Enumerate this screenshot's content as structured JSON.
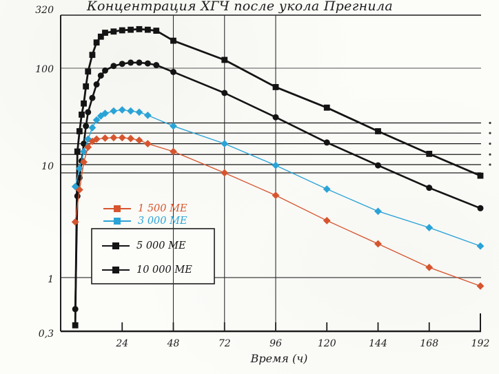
{
  "chart_data": {
    "type": "line",
    "title": "Концентрация ХГЧ после укола Прегнила",
    "xlabel": "Время (ч)",
    "y_scale": "log",
    "ylim": [
      0.3,
      320
    ],
    "xlim": [
      0,
      192
    ],
    "grid": "partial",
    "ytick_labels": [
      "320",
      "100",
      "10",
      "1",
      "0,3"
    ],
    "ytick_values": [
      320,
      100,
      10,
      1,
      0.3
    ],
    "xtick_labels": [
      "24",
      "48",
      "72",
      "96",
      "120",
      "144",
      "168",
      "192"
    ],
    "xtick_values": [
      24,
      48,
      72,
      96,
      120,
      144,
      168,
      192
    ],
    "vertical_gridline_values": [
      48,
      72,
      96
    ],
    "reference_line_values": [
      30,
      24,
      19,
      15,
      12
    ],
    "series": [
      {
        "name": "10 000 МЕ",
        "color": "#141414",
        "marker": "square",
        "points": [
          [
            2,
            0.35
          ],
          [
            3,
            16
          ],
          [
            4,
            25
          ],
          [
            5,
            36
          ],
          [
            6,
            46
          ],
          [
            7,
            67
          ],
          [
            8,
            93
          ],
          [
            10,
            134
          ],
          [
            12,
            176
          ],
          [
            14,
            200
          ],
          [
            16,
            218
          ],
          [
            20,
            224
          ],
          [
            24,
            230
          ],
          [
            28,
            233
          ],
          [
            32,
            236
          ],
          [
            36,
            233
          ],
          [
            40,
            228
          ],
          [
            48,
            183
          ],
          [
            72,
            120
          ],
          [
            96,
            66
          ],
          [
            120,
            42
          ],
          [
            144,
            25
          ],
          [
            168,
            15.2
          ],
          [
            192,
            9.4
          ]
        ]
      },
      {
        "name": "5 000 МЕ",
        "color": "#141414",
        "marker": "circle",
        "points": [
          [
            2,
            0.5
          ],
          [
            3,
            6
          ],
          [
            4,
            9
          ],
          [
            5,
            13
          ],
          [
            6,
            19
          ],
          [
            7,
            28
          ],
          [
            8,
            38
          ],
          [
            10,
            52
          ],
          [
            12,
            70
          ],
          [
            14,
            85
          ],
          [
            16,
            95
          ],
          [
            20,
            105
          ],
          [
            24,
            110
          ],
          [
            28,
            113
          ],
          [
            32,
            113
          ],
          [
            36,
            111
          ],
          [
            40,
            107
          ],
          [
            48,
            92
          ],
          [
            72,
            58
          ],
          [
            96,
            34
          ],
          [
            120,
            19.5
          ],
          [
            144,
            11.8
          ],
          [
            168,
            7.2
          ],
          [
            192,
            4.6
          ]
        ]
      },
      {
        "name": "3 000 МЕ",
        "color": "#2aa3d6",
        "marker": "diamond",
        "points": [
          [
            2,
            7.4
          ],
          [
            4,
            11
          ],
          [
            6,
            16
          ],
          [
            8,
            21
          ],
          [
            10,
            27
          ],
          [
            12,
            32
          ],
          [
            14,
            35
          ],
          [
            16,
            37
          ],
          [
            20,
            39
          ],
          [
            24,
            40
          ],
          [
            28,
            39
          ],
          [
            32,
            38
          ],
          [
            36,
            35.5
          ],
          [
            48,
            28
          ],
          [
            72,
            19
          ],
          [
            96,
            11.8
          ],
          [
            120,
            7.0
          ],
          [
            144,
            4.3
          ],
          [
            168,
            3.0
          ],
          [
            192,
            2.0
          ]
        ]
      },
      {
        "name": "1 500 МЕ",
        "color": "#d6552e",
        "marker": "diamond",
        "points": [
          [
            2,
            3.4
          ],
          [
            4,
            6.9
          ],
          [
            6,
            12.7
          ],
          [
            8,
            17.6
          ],
          [
            10,
            20
          ],
          [
            12,
            21
          ],
          [
            16,
            21.5
          ],
          [
            20,
            21.7
          ],
          [
            24,
            21.7
          ],
          [
            28,
            21.3
          ],
          [
            32,
            20.5
          ],
          [
            36,
            19
          ],
          [
            48,
            16
          ],
          [
            72,
            10
          ],
          [
            96,
            6.1
          ],
          [
            120,
            3.5
          ],
          [
            144,
            2.1
          ],
          [
            168,
            1.25
          ],
          [
            192,
            0.83
          ]
        ]
      }
    ]
  },
  "legend": {
    "items": [
      {
        "label": "1 500 МЕ",
        "color": "#d6552e",
        "marker": "circle"
      },
      {
        "label": "3 000 МЕ",
        "color": "#2aa3d6",
        "marker": "circle"
      },
      {
        "label": "5 000 МЕ",
        "color": "#141414",
        "marker": "circle"
      },
      {
        "label": "10 000 МЕ",
        "color": "#141414",
        "marker": "square"
      }
    ]
  }
}
